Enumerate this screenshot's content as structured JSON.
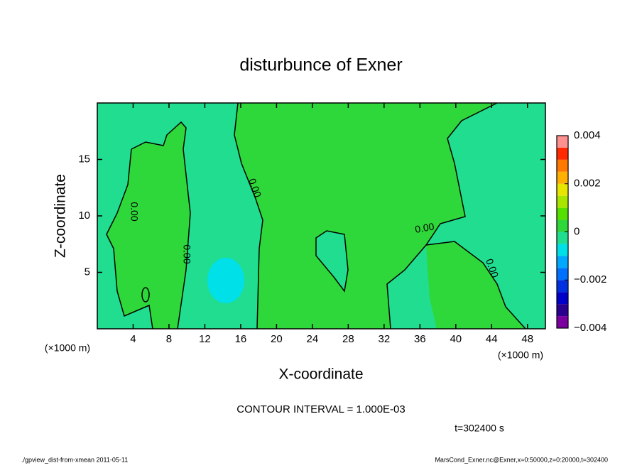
{
  "chart_data": {
    "type": "contour",
    "title": "disturbunce of Exner",
    "x_label": "X-coordinate",
    "y_label": "Z-coordinate",
    "x_unit": "(×1000 m)",
    "xlim": [
      0,
      50
    ],
    "xticks": [
      4,
      8,
      12,
      16,
      20,
      24,
      28,
      32,
      36,
      40,
      44,
      48
    ],
    "ylim": [
      0,
      20
    ],
    "yticks": [
      5,
      10,
      15
    ],
    "contour_label": "0.00",
    "contour_interval": "CONTOUR INTERVAL = 1.000E-03",
    "time": "t=302400 s",
    "colorbar": {
      "lim": [
        -0.004,
        0.004
      ],
      "ticks": [
        {
          "value": 0.004,
          "label": "0.004"
        },
        {
          "value": 0.002,
          "label": "0.002"
        },
        0,
        {
          "value": -0.002,
          "label": "−0.002"
        },
        {
          "value": -0.004,
          "label": "−0.004"
        }
      ],
      "colors": [
        "#7a00a0",
        "#2a0090",
        "#0000c8",
        "#0030e0",
        "#0070ff",
        "#00a8ff",
        "#00e0e8",
        "#20dd90",
        "#2ed83a",
        "#55e000",
        "#a8e600",
        "#e6e600",
        "#ffb000",
        "#ff7800",
        "#ff2a00",
        "#ff9090"
      ]
    },
    "footer_left": "./gpview_dist-from-xmean   2011-05-11",
    "footer_right": "MarsCond_Exner.nc@Exner,x=0:50000,z=0:20000,t=302400"
  }
}
